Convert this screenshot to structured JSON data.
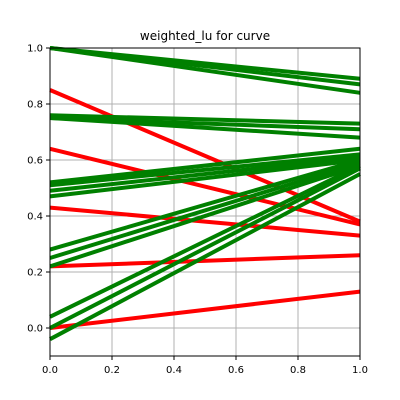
{
  "chart_data": {
    "type": "line",
    "title": "weighted_lu for curve",
    "xlabel": "",
    "ylabel": "",
    "xlim": [
      0.0,
      1.0
    ],
    "ylim": [
      -0.1,
      1.0
    ],
    "xticks": [
      "0.0",
      "0.2",
      "0.4",
      "0.6",
      "0.8",
      "1.0"
    ],
    "yticks": [
      "0.0",
      "0.2",
      "0.4",
      "0.6",
      "0.8",
      "1.0"
    ],
    "grid": true,
    "colors": {
      "red": "#ff0000",
      "green": "#008000",
      "grid": "#b0b0b0"
    },
    "series": [
      {
        "color": "red",
        "x": [
          0,
          1
        ],
        "y": [
          0.85,
          0.38
        ]
      },
      {
        "color": "red",
        "x": [
          0,
          1
        ],
        "y": [
          0.64,
          0.37
        ]
      },
      {
        "color": "red",
        "x": [
          0,
          1
        ],
        "y": [
          0.43,
          0.33
        ]
      },
      {
        "color": "red",
        "x": [
          0,
          1
        ],
        "y": [
          0.22,
          0.26
        ]
      },
      {
        "color": "red",
        "x": [
          0,
          1
        ],
        "y": [
          0.0,
          0.13
        ]
      },
      {
        "color": "green",
        "x": [
          0,
          1
        ],
        "y": [
          1.0,
          0.89
        ]
      },
      {
        "color": "green",
        "x": [
          0,
          1
        ],
        "y": [
          1.0,
          0.87
        ]
      },
      {
        "color": "green",
        "x": [
          0,
          1
        ],
        "y": [
          1.0,
          0.84
        ]
      },
      {
        "color": "green",
        "x": [
          0,
          1
        ],
        "y": [
          0.76,
          0.73
        ]
      },
      {
        "color": "green",
        "x": [
          0,
          1
        ],
        "y": [
          0.75,
          0.71
        ]
      },
      {
        "color": "green",
        "x": [
          0,
          1
        ],
        "y": [
          0.75,
          0.68
        ]
      },
      {
        "color": "green",
        "x": [
          0,
          1
        ],
        "y": [
          0.52,
          0.64
        ]
      },
      {
        "color": "green",
        "x": [
          0,
          1
        ],
        "y": [
          0.51,
          0.62
        ]
      },
      {
        "color": "green",
        "x": [
          0,
          1
        ],
        "y": [
          0.49,
          0.61
        ]
      },
      {
        "color": "green",
        "x": [
          0,
          1
        ],
        "y": [
          0.47,
          0.6
        ]
      },
      {
        "color": "green",
        "x": [
          0,
          1
        ],
        "y": [
          0.28,
          0.6
        ]
      },
      {
        "color": "green",
        "x": [
          0,
          1
        ],
        "y": [
          0.25,
          0.59
        ]
      },
      {
        "color": "green",
        "x": [
          0,
          1
        ],
        "y": [
          0.22,
          0.58
        ]
      },
      {
        "color": "green",
        "x": [
          0,
          1
        ],
        "y": [
          0.04,
          0.58
        ]
      },
      {
        "color": "green",
        "x": [
          0,
          1
        ],
        "y": [
          0.0,
          0.57
        ]
      },
      {
        "color": "green",
        "x": [
          0,
          1
        ],
        "y": [
          -0.04,
          0.55
        ]
      }
    ]
  }
}
